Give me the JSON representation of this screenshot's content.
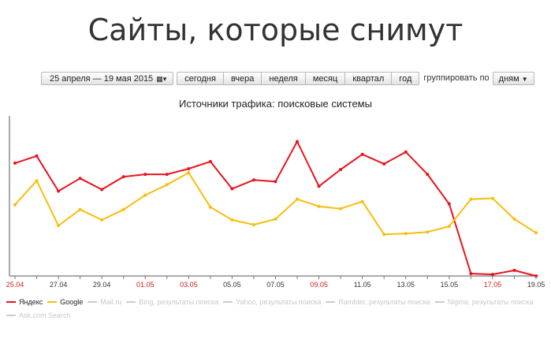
{
  "slide": {
    "title": "Сайты, которые снимут"
  },
  "toolbar": {
    "date_range": "25 апреля — 19 мая 2015",
    "periods": [
      "сегодня",
      "вчера",
      "неделя",
      "месяц",
      "квартал",
      "год"
    ],
    "group_label": "группировать по",
    "group_value": "дням"
  },
  "colors": {
    "yandex": "#e8141c",
    "google": "#f7be0c",
    "inactive": "#cccccc",
    "holiday": "#d21c1c",
    "tick": "#333333"
  },
  "chart_data": {
    "type": "line",
    "title": "Источники трафика: поисковые системы",
    "x": [
      "25.04",
      "26.04",
      "27.04",
      "28.04",
      "29.04",
      "30.04",
      "01.05",
      "02.05",
      "03.05",
      "04.05",
      "05.05",
      "06.05",
      "07.05",
      "08.05",
      "09.05",
      "10.05",
      "11.05",
      "12.05",
      "13.05",
      "14.05",
      "15.05",
      "16.05",
      "17.05",
      "18.05",
      "19.05"
    ],
    "x_tick_labels": [
      "25.04",
      "27.04",
      "29.04",
      "01.05",
      "03.05",
      "05.05",
      "07.05",
      "09.05",
      "11.05",
      "13.05",
      "15.05",
      "17.05",
      "19.05"
    ],
    "holiday_ticks": [
      "25.04",
      "01.05",
      "03.05",
      "09.05",
      "17.05"
    ],
    "ylim": [
      0,
      200
    ],
    "grid": false,
    "legend_position": "bottom",
    "series": [
      {
        "name": "Яндекс",
        "color": "#e8141c",
        "values": [
          141,
          150,
          106,
          122,
          108,
          124,
          127,
          127,
          134,
          143,
          109,
          120,
          118,
          168,
          112,
          133,
          152,
          140,
          155,
          127,
          90,
          3,
          2,
          7,
          0
        ]
      },
      {
        "name": "Google",
        "color": "#f7be0c",
        "values": [
          89,
          119,
          63,
          83,
          70,
          83,
          101,
          114,
          129,
          86,
          70,
          64,
          71,
          96,
          87,
          84,
          93,
          52,
          53,
          55,
          62,
          96,
          97,
          71,
          54
        ]
      }
    ],
    "legend": [
      {
        "name": "Яндекс",
        "active": true,
        "color": "#e8141c"
      },
      {
        "name": "Google",
        "active": true,
        "color": "#f7be0c"
      },
      {
        "name": "Mail.ru",
        "active": false
      },
      {
        "name": "Bing, результаты поиска",
        "active": false
      },
      {
        "name": "Yahoo, результаты поиска",
        "active": false
      },
      {
        "name": "Rambler, результаты поиска",
        "active": false
      },
      {
        "name": "Nigma, результаты поиска",
        "active": false
      },
      {
        "name": "Ask.com Search",
        "active": false
      }
    ]
  }
}
